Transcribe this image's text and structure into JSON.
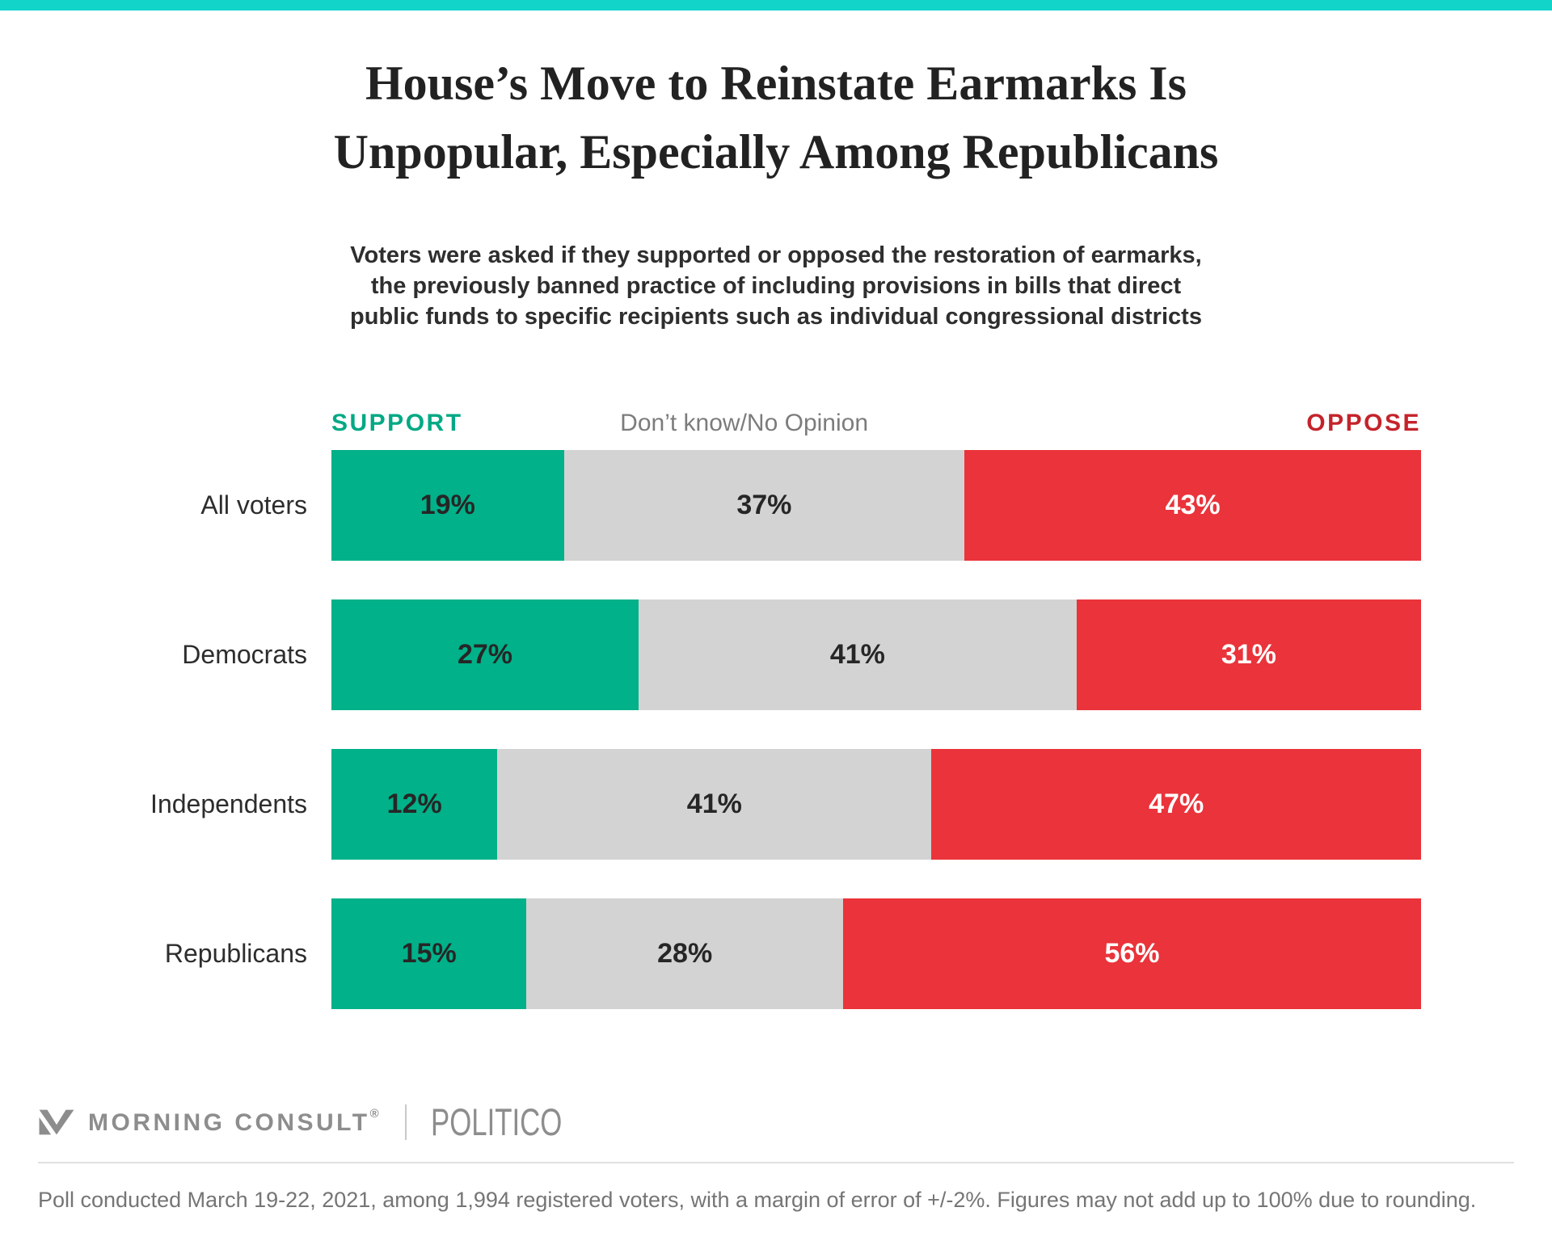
{
  "page": {
    "accent_color": "#12d4c9",
    "background_color": "#ffffff"
  },
  "header": {
    "title": "House’s Move to Reinstate Earmarks Is\nUnpopular, Especially Among Republicans",
    "subtitle": "Voters were asked if they supported or opposed the restoration of earmarks,\nthe previously banned practice of including provisions in bills that direct\npublic funds to specific recipients such as individual congressional districts"
  },
  "legend": {
    "support_label": "SUPPORT",
    "neutral_label": "Don’t know/No Opinion",
    "oppose_label": "OPPOSE",
    "support_color": "#00a984",
    "neutral_color": "#7c7c7c",
    "oppose_color": "#c4232b"
  },
  "chart_data": {
    "type": "bar",
    "orientation": "horizontal",
    "stacked": true,
    "unit": "%",
    "grid": false,
    "legend_position": "top",
    "xlim": [
      0,
      100
    ],
    "title": "House’s Move to Reinstate Earmarks Is Unpopular, Especially Among Republicans",
    "categories": [
      "All voters",
      "Democrats",
      "Independents",
      "Republicans"
    ],
    "series": [
      {
        "name": "Support",
        "color": "#00b189",
        "label_color": "#262626",
        "values": [
          19,
          27,
          12,
          15
        ]
      },
      {
        "name": "Don’t know/No Opinion",
        "color": "#d3d3d3",
        "label_color": "#262626",
        "values": [
          37,
          41,
          41,
          28
        ]
      },
      {
        "name": "Oppose",
        "color": "#ea333a",
        "label_color": "#ffffff",
        "values": [
          43,
          31,
          47,
          56
        ]
      }
    ]
  },
  "footer": {
    "brand": "MORNING CONSULT",
    "brand_reg": "®",
    "brand_mark_icon": "morning-consult-m-logo",
    "partner": "POLITICO",
    "footnote": "Poll conducted March 19-22, 2021, among 1,994 registered voters, with a margin of error of +/-2%. Figures may not add up to 100% due to rounding."
  }
}
